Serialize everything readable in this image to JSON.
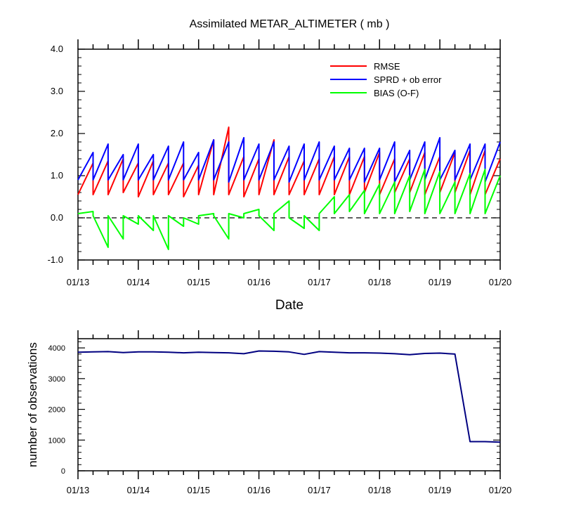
{
  "chart_data": [
    {
      "type": "line",
      "title": "Assimilated METAR_ALTIMETER ( mb )",
      "xlabel": "Date",
      "ylabel": "",
      "ylim": [
        -1.0,
        4.0
      ],
      "yticks": [
        -1.0,
        0.0,
        1.0,
        2.0,
        3.0,
        4.0
      ],
      "ytick_labels": [
        "-1.0",
        "0.0",
        "1.0",
        "2.0",
        "3.0",
        "4.0"
      ],
      "x_range": [
        0,
        7
      ],
      "x_tick_labels": [
        "01/13",
        "01/14",
        "01/15",
        "01/16",
        "01/17",
        "01/18",
        "01/19",
        "01/20"
      ],
      "reference_line": {
        "y": 0,
        "style": "dashed"
      },
      "legend": [
        "RMSE",
        "SPRD + ob error",
        "BIAS (O-F)"
      ],
      "legend_position": "top-right",
      "series": [
        {
          "name": "RMSE",
          "color": "#ff0000",
          "x": [
            0,
            0.25,
            0.25,
            0.5,
            0.5,
            0.75,
            0.75,
            1,
            1,
            1.25,
            1.25,
            1.5,
            1.5,
            1.75,
            1.75,
            2,
            2,
            2.25,
            2.25,
            2.5,
            2.5,
            2.75,
            2.75,
            3,
            3,
            3.25,
            3.25,
            3.5,
            3.5,
            3.75,
            3.75,
            4,
            4,
            4.25,
            4.25,
            4.5,
            4.5,
            4.75,
            4.75,
            5,
            5,
            5.25,
            5.25,
            5.5,
            5.5,
            5.75,
            5.75,
            6,
            6,
            6.25,
            6.25,
            6.5,
            6.5,
            6.75,
            6.75,
            7
          ],
          "y": [
            0.55,
            1.3,
            0.55,
            1.35,
            0.55,
            1.4,
            0.6,
            1.3,
            0.5,
            1.35,
            0.55,
            1.3,
            0.55,
            1.3,
            0.5,
            1.25,
            0.55,
            1.85,
            0.55,
            2.15,
            0.55,
            1.45,
            0.5,
            1.4,
            0.55,
            1.85,
            0.55,
            1.45,
            0.55,
            1.35,
            0.55,
            1.4,
            0.55,
            1.45,
            0.55,
            1.45,
            0.55,
            1.45,
            0.6,
            1.55,
            0.55,
            1.4,
            0.6,
            1.4,
            0.6,
            1.55,
            0.55,
            1.45,
            0.6,
            1.55,
            0.6,
            1.6,
            0.55,
            1.6,
            0.55,
            1.4
          ]
        },
        {
          "name": "SPRD + ob error",
          "color": "#0000ff",
          "x": [
            0,
            0.25,
            0.25,
            0.5,
            0.5,
            0.75,
            0.75,
            1,
            1,
            1.25,
            1.25,
            1.5,
            1.5,
            1.75,
            1.75,
            2,
            2,
            2.25,
            2.25,
            2.5,
            2.5,
            2.75,
            2.75,
            3,
            3,
            3.25,
            3.25,
            3.5,
            3.5,
            3.75,
            3.75,
            4,
            4,
            4.25,
            4.25,
            4.5,
            4.5,
            4.75,
            4.75,
            5,
            5,
            5.25,
            5.25,
            5.5,
            5.5,
            5.75,
            5.75,
            6,
            6,
            6.25,
            6.25,
            6.5,
            6.5,
            6.75,
            6.75,
            7
          ],
          "y": [
            0.9,
            1.55,
            0.9,
            1.75,
            0.9,
            1.5,
            0.9,
            1.75,
            0.9,
            1.5,
            0.9,
            1.7,
            0.9,
            1.8,
            0.9,
            1.55,
            0.9,
            1.85,
            0.9,
            1.8,
            0.85,
            1.9,
            0.9,
            1.75,
            0.9,
            1.8,
            0.9,
            1.7,
            0.85,
            1.75,
            0.9,
            1.8,
            0.9,
            1.7,
            0.9,
            1.65,
            0.9,
            1.65,
            0.85,
            1.65,
            0.9,
            1.8,
            0.85,
            1.6,
            0.9,
            1.8,
            0.9,
            1.9,
            0.9,
            1.6,
            0.9,
            1.75,
            0.9,
            1.75,
            0.85,
            1.8
          ]
        },
        {
          "name": "BIAS (O-F)",
          "color": "#00ff00",
          "x": [
            0,
            0.25,
            0.25,
            0.5,
            0.5,
            0.75,
            0.75,
            1,
            1,
            1.25,
            1.25,
            1.5,
            1.5,
            1.75,
            1.75,
            2,
            2,
            2.25,
            2.25,
            2.5,
            2.5,
            2.75,
            2.75,
            3,
            3,
            3.25,
            3.25,
            3.5,
            3.5,
            3.75,
            3.75,
            4,
            4,
            4.25,
            4.25,
            4.5,
            4.5,
            4.75,
            4.75,
            5,
            5,
            5.25,
            5.25,
            5.5,
            5.5,
            5.75,
            5.75,
            6,
            6,
            6.25,
            6.25,
            6.5,
            6.5,
            6.75,
            6.75,
            7
          ],
          "y": [
            0.1,
            0.15,
            0.05,
            -0.7,
            0.05,
            -0.5,
            0.05,
            -0.15,
            0.05,
            -0.3,
            0.05,
            -0.75,
            0.05,
            -0.2,
            0.0,
            -0.15,
            0.05,
            0.1,
            0.05,
            -0.5,
            0.1,
            0.0,
            0.1,
            0.2,
            0.05,
            -0.3,
            0.1,
            0.4,
            0.0,
            -0.25,
            0.05,
            -0.3,
            0.1,
            0.5,
            0.1,
            0.55,
            0.15,
            0.65,
            0.1,
            0.8,
            0.1,
            0.85,
            0.1,
            1.0,
            0.15,
            1.15,
            0.1,
            1.1,
            0.1,
            0.85,
            0.1,
            1.05,
            0.1,
            1.15,
            0.1,
            1.0
          ]
        }
      ]
    },
    {
      "type": "line",
      "title": "",
      "xlabel": "",
      "ylabel": "number of observations",
      "ylim": [
        0,
        4300
      ],
      "yticks": [
        0,
        1000,
        2000,
        3000,
        4000
      ],
      "ytick_labels": [
        "0",
        "1000",
        "2000",
        "3000",
        "4000"
      ],
      "x_range": [
        0,
        7
      ],
      "x_tick_labels": [
        "01/13",
        "01/14",
        "01/15",
        "01/16",
        "01/17",
        "01/18",
        "01/19",
        "01/20"
      ],
      "series": [
        {
          "name": "observations",
          "color": "#000080",
          "x": [
            0,
            0.25,
            0.5,
            0.75,
            1,
            1.25,
            1.5,
            1.75,
            2,
            2.25,
            2.5,
            2.75,
            3,
            3.25,
            3.5,
            3.75,
            4,
            4.25,
            4.5,
            4.75,
            5,
            5.25,
            5.5,
            5.75,
            6,
            6.25,
            6.5,
            6.75,
            7
          ],
          "y": [
            3860,
            3870,
            3880,
            3850,
            3870,
            3870,
            3860,
            3840,
            3860,
            3850,
            3840,
            3810,
            3900,
            3890,
            3870,
            3790,
            3880,
            3860,
            3840,
            3840,
            3830,
            3810,
            3780,
            3820,
            3830,
            3800,
            950,
            950,
            930
          ]
        }
      ]
    }
  ]
}
